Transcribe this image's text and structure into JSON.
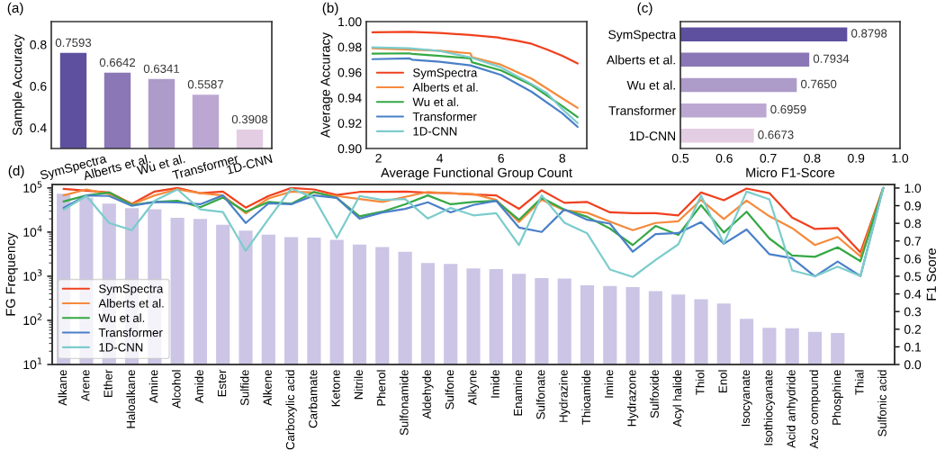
{
  "chart_data": [
    {
      "type": "bar",
      "annotations": [
        "(a)"
      ],
      "ylabel": "Sample Accuracy",
      "categories": [
        "SymSpectra",
        "Alberts et al.",
        "Wu et al.",
        "Transformer",
        "1D-CNN"
      ],
      "values": [
        0.7593,
        0.6642,
        0.6341,
        0.5587,
        0.3908
      ],
      "value_labels": [
        "0.7593",
        "0.6642",
        "0.6341",
        "0.5587",
        "0.3908"
      ],
      "colors": [
        "#5e509e",
        "#8b77b6",
        "#ad9bc9",
        "#bca7d2",
        "#e3cde3"
      ],
      "ylim": [
        0.3,
        0.91
      ],
      "yticks": [
        0.4,
        0.6,
        0.8
      ]
    },
    {
      "type": "line",
      "annotations": [
        "(b)"
      ],
      "xlabel": "Average Functional Group Count",
      "ylabel": "Average Accuracy",
      "legend": "lower left",
      "xlim": [
        1.6,
        8.8
      ],
      "xticks": [
        2,
        4,
        6,
        8
      ],
      "ylim": [
        0.9,
        1.0
      ],
      "yticks": [
        {
          "value": 0.9,
          "label": "0.90"
        },
        0.92,
        0.94,
        0.96,
        0.98,
        {
          "value": 1.0,
          "label": "1.00"
        }
      ],
      "series": [
        {
          "name": "SymSpectra",
          "color": "#f0401e",
          "x": [
            1.8,
            3.0,
            4.0,
            5.0,
            5.9,
            6.0,
            6.5,
            7.0,
            7.5,
            8.0,
            8.5
          ],
          "values": [
            0.9915,
            0.992,
            0.991,
            0.9895,
            0.9875,
            0.987,
            0.985,
            0.9825,
            0.978,
            0.973,
            0.967
          ]
        },
        {
          "name": "Alberts et al.",
          "color": "#f58a3c",
          "x": [
            1.8,
            4.0,
            5.0,
            5.05,
            6.0,
            7.0,
            8.0,
            8.5
          ],
          "values": [
            0.979,
            0.977,
            0.975,
            0.972,
            0.966,
            0.955,
            0.9395,
            0.932
          ]
        },
        {
          "name": "Wu et al.",
          "color": "#35a845",
          "x": [
            1.8,
            3.0,
            3.1,
            4.0,
            5.0,
            5.05,
            6.0,
            7.0,
            8.0,
            8.5
          ],
          "values": [
            0.9747,
            0.975,
            0.9745,
            0.973,
            0.971,
            0.968,
            0.9615,
            0.95,
            0.9334,
            0.9248
          ]
        },
        {
          "name": "Transformer",
          "color": "#4a80c8",
          "x": [
            1.8,
            3.0,
            3.1,
            4.0,
            5.0,
            6.0,
            7.0,
            8.0,
            8.5
          ],
          "values": [
            0.9704,
            0.971,
            0.97,
            0.9684,
            0.9655,
            0.958,
            0.9447,
            0.9278,
            0.917
          ]
        },
        {
          "name": "1D-CNN",
          "color": "#7ccccc",
          "x": [
            1.8,
            3.0,
            4.0,
            5.0,
            6.0,
            7.0,
            7.5,
            8.0,
            8.5
          ],
          "values": [
            0.9797,
            0.979,
            0.9768,
            0.9718,
            0.9639,
            0.9508,
            0.9436,
            0.9311,
            0.92
          ]
        }
      ]
    },
    {
      "type": "bar",
      "orientation": "horizontal",
      "annotations": [
        "(c)"
      ],
      "xlabel": "Micro F1-Score",
      "categories": [
        "SymSpectra",
        "Alberts et al.",
        "Wu et al.",
        "Transformer",
        "1D-CNN"
      ],
      "values": [
        0.8798,
        0.7934,
        0.765,
        0.6959,
        0.6673
      ],
      "value_labels": [
        "0.8798",
        "0.7934",
        "0.7650",
        "0.6959",
        "0.6673"
      ],
      "colors": [
        "#5e509e",
        "#8b77b6",
        "#ad9bc9",
        "#bca7d2",
        "#e3cde3"
      ],
      "xlim": [
        0.5,
        1.0
      ],
      "xticks": [
        0.5,
        0.6,
        0.7,
        0.8,
        0.9,
        {
          "value": 1,
          "label": "1.0"
        }
      ]
    },
    {
      "type": "bar",
      "annotations": [
        "(d)"
      ],
      "ylabel": "FG Frequency",
      "y2label": "F1 Score",
      "log": true,
      "legend": "lower left",
      "ylim": [
        10,
        120000
      ],
      "yticks": [
        {
          "value": 10,
          "label": "10$^{1}$"
        },
        {
          "value": 100,
          "label": "10$^{2}$"
        },
        {
          "value": 1000,
          "label": "10$^{3}$"
        },
        {
          "value": 10000,
          "label": "10$^{4}$"
        },
        {
          "value": 100000,
          "label": "10$^{5}$"
        }
      ],
      "y2lim": [
        0,
        1.02
      ],
      "y2ticks": [
        {
          "value": 0,
          "label": "0.0"
        },
        0.1,
        0.2,
        0.3,
        0.4,
        0.5,
        0.6,
        0.7,
        0.8,
        0.9,
        {
          "value": 1,
          "label": "1.0"
        }
      ],
      "categories": [
        "Alkane",
        "Arene",
        "Ether",
        "Haloalkane",
        "Amine",
        "Alcohol",
        "Amide",
        "Ester",
        "Sulfide",
        "Alkene",
        "Carboxylic acid",
        "Carbamate",
        "Ketone",
        "Nitrile",
        "Phenol",
        "Sulfonamide",
        "Aldehyde",
        "Sulfone",
        "Alkyne",
        "Imide",
        "Enamine",
        "Sulfonate",
        "Hydrazine",
        "Thioamide",
        "Imine",
        "Hydrazone",
        "Sulfoxide",
        "Acyl halide",
        "Thiol",
        "Enol",
        "Isocyanate",
        "Isothiocyanate",
        "Acid anhydride",
        "Azo compound",
        "Phosphine",
        "Thial",
        "Sulfonic acid"
      ],
      "series": [
        {
          "type": "bar",
          "color": "#ccc5e5",
          "values": [
            74000,
            60000,
            44000,
            35000,
            33000,
            21000,
            20000,
            14700,
            10800,
            8800,
            7700,
            7500,
            6700,
            5200,
            4600,
            3600,
            2000,
            1900,
            1500,
            1450,
            1130,
            910,
            885,
            620,
            600,
            570,
            457,
            386,
            302,
            240,
            108,
            68,
            66,
            55,
            52,
            null,
            null
          ]
        },
        {
          "type": "line",
          "axis": "y2",
          "name": "SymSpectra",
          "color": "#f0401e",
          "values": [
            0.995,
            0.985,
            0.975,
            0.911,
            0.98,
            1.0,
            0.971,
            0.98,
            0.889,
            0.955,
            1.0,
            0.992,
            0.961,
            0.978,
            0.978,
            0.98,
            0.973,
            0.971,
            0.963,
            0.958,
            0.882,
            0.987,
            0.916,
            0.921,
            0.862,
            0.857,
            0.857,
            0.845,
            0.975,
            0.931,
            0.997,
            0.971,
            0.832,
            0.768,
            0.773,
            0.635,
            1.0
          ]
        },
        {
          "type": "line",
          "axis": "y2",
          "name": "Alberts et al.",
          "color": "#f58a3c",
          "values": [
            0.958,
            0.992,
            0.966,
            0.908,
            0.958,
            0.993,
            0.971,
            0.958,
            0.857,
            0.941,
            0.98,
            0.975,
            0.955,
            0.938,
            0.921,
            0.95,
            0.978,
            0.97,
            0.966,
            0.933,
            0.807,
            0.933,
            0.874,
            0.86,
            0.81,
            0.761,
            0.802,
            0.812,
            0.933,
            0.824,
            0.929,
            0.84,
            0.773,
            0.677,
            0.723,
            0.613,
            1.0
          ]
        },
        {
          "type": "line",
          "axis": "y2",
          "name": "Wu et al.",
          "color": "#35a845",
          "values": [
            0.924,
            0.958,
            0.975,
            0.904,
            0.921,
            0.928,
            0.891,
            0.946,
            0.866,
            0.921,
            0.911,
            0.978,
            0.944,
            0.84,
            0.866,
            0.908,
            0.958,
            0.908,
            0.921,
            0.928,
            0.82,
            0.945,
            0.877,
            0.837,
            0.77,
            0.677,
            0.785,
            0.734,
            0.903,
            0.748,
            0.866,
            0.714,
            0.618,
            0.61,
            0.664,
            0.585,
            1.0
          ]
        },
        {
          "type": "line",
          "axis": "y2",
          "name": "Transformer",
          "color": "#4a80c8",
          "values": [
            0.887,
            0.958,
            0.955,
            0.899,
            0.921,
            0.918,
            0.908,
            0.958,
            0.802,
            0.913,
            0.908,
            0.958,
            0.944,
            0.827,
            0.861,
            0.882,
            0.919,
            0.862,
            0.904,
            0.928,
            0.776,
            0.751,
            0.879,
            0.82,
            0.798,
            0.639,
            0.739,
            0.745,
            0.807,
            0.684,
            0.765,
            0.625,
            0.602,
            0.499,
            0.583,
            0.501,
            1.0
          ]
        },
        {
          "type": "line",
          "axis": "y2",
          "name": "1D-CNN",
          "color": "#7ccccc",
          "values": [
            0.877,
            0.955,
            0.802,
            0.761,
            0.928,
            0.992,
            0.879,
            0.864,
            0.644,
            0.824,
            0.997,
            0.944,
            0.718,
            0.955,
            0.933,
            0.938,
            0.827,
            0.887,
            0.845,
            0.857,
            0.677,
            0.958,
            0.803,
            0.743,
            0.538,
            0.496,
            0.592,
            0.681,
            0.958,
            0.686,
            0.98,
            0.936,
            0.533,
            0.5,
            0.555,
            0.501,
            1.0
          ]
        }
      ]
    }
  ]
}
